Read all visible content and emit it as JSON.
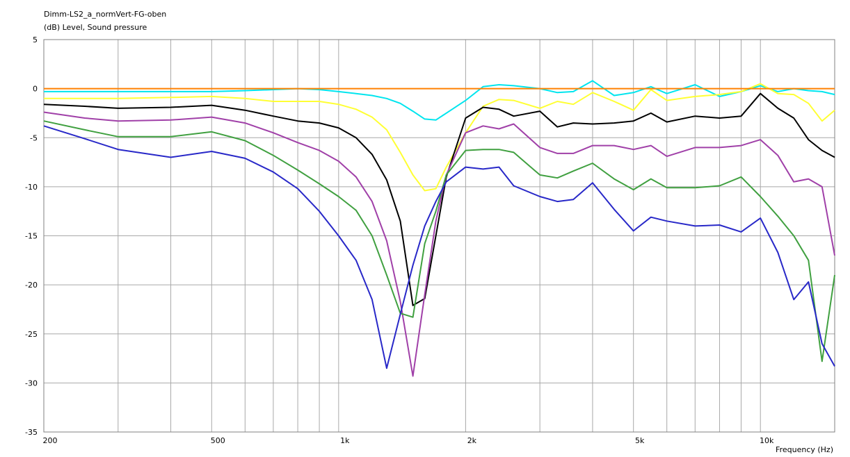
{
  "chart_data": {
    "type": "line",
    "title": "Dimm-LS2_a_normVert-FG-oben",
    "y_label": "(dB)  Level, Sound pressure",
    "x_label": "Frequency  (Hz)",
    "log_x": true,
    "grid": true,
    "xlim": [
      200,
      15000
    ],
    "ylim": [
      -35,
      5
    ],
    "xticks": [
      200,
      500,
      {
        "value": 1000,
        "label": "1k"
      },
      {
        "value": 2000,
        "label": "2k"
      },
      {
        "value": 5000,
        "label": "5k"
      },
      {
        "value": 10000,
        "label": "10k"
      }
    ],
    "xminorticks": [
      300,
      400,
      600,
      700,
      800,
      900,
      3000,
      4000,
      6000,
      7000,
      8000,
      9000
    ],
    "yticks": [
      5,
      0,
      -5,
      -10,
      -15,
      -20,
      -25,
      -30,
      -35
    ],
    "x": [
      200,
      250,
      300,
      400,
      500,
      600,
      700,
      800,
      900,
      1000,
      1100,
      1200,
      1300,
      1400,
      1500,
      1600,
      1700,
      1800,
      2000,
      2200,
      2400,
      2600,
      3000,
      3300,
      3600,
      4000,
      4500,
      5000,
      5500,
      6000,
      7000,
      8000,
      9000,
      10000,
      11000,
      12000,
      13000,
      14000,
      15000
    ],
    "series": [
      {
        "color": "#00e5ee",
        "values": [
          -0.3,
          -0.3,
          -0.3,
          -0.3,
          -0.3,
          -0.2,
          -0.1,
          0,
          -0.1,
          -0.3,
          -0.5,
          -0.7,
          -1.0,
          -1.5,
          -2.3,
          -3.1,
          -3.2,
          -2.5,
          -1.2,
          0.2,
          0.4,
          0.3,
          0,
          -0.4,
          -0.3,
          0.8,
          -0.7,
          -0.4,
          0.2,
          -0.5,
          0.4,
          -0.8,
          -0.3,
          0.3,
          -0.3,
          0,
          -0.2,
          -0.3,
          -0.6
        ]
      },
      {
        "color": "#ffff33",
        "values": [
          -1.0,
          -1.0,
          -1.0,
          -0.9,
          -0.8,
          -1.0,
          -1.3,
          -1.3,
          -1.3,
          -1.6,
          -2.1,
          -2.9,
          -4.2,
          -6.5,
          -8.8,
          -10.4,
          -10.2,
          -8.0,
          -4.5,
          -1.8,
          -1.1,
          -1.2,
          -2.0,
          -1.3,
          -1.6,
          -0.4,
          -1.3,
          -2.2,
          -0.1,
          -1.2,
          -0.8,
          -0.6,
          -0.3,
          0.5,
          -0.5,
          -0.6,
          -1.5,
          -3.3,
          -2.2
        ]
      },
      {
        "color": "#000000",
        "values": [
          -1.6,
          -1.8,
          -2.0,
          -1.9,
          -1.7,
          -2.2,
          -2.8,
          -3.3,
          -3.5,
          -4.0,
          -5.0,
          -6.7,
          -9.3,
          -13.5,
          -22.1,
          -21.4,
          -15.0,
          -9.0,
          -3.0,
          -1.9,
          -2.1,
          -2.8,
          -2.3,
          -3.9,
          -3.5,
          -3.6,
          -3.5,
          -3.3,
          -2.5,
          -3.4,
          -2.8,
          -3.0,
          -2.8,
          -0.5,
          -2.0,
          -3.0,
          -5.2,
          -6.3,
          -7.0
        ]
      },
      {
        "color": "#a040a8",
        "values": [
          -2.4,
          -3.0,
          -3.3,
          -3.2,
          -2.9,
          -3.5,
          -4.5,
          -5.5,
          -6.3,
          -7.4,
          -9.0,
          -11.5,
          -15.5,
          -21.7,
          -29.3,
          -21.0,
          -13.5,
          -8.8,
          -4.5,
          -3.8,
          -4.1,
          -3.6,
          -6.0,
          -6.6,
          -6.6,
          -5.8,
          -5.8,
          -6.2,
          -5.8,
          -6.9,
          -6.0,
          -6.0,
          -5.8,
          -5.2,
          -6.8,
          -9.5,
          -9.2,
          -10.0,
          -17.0
        ]
      },
      {
        "color": "#40a040",
        "values": [
          -3.3,
          -4.2,
          -4.9,
          -4.9,
          -4.4,
          -5.3,
          -6.8,
          -8.3,
          -9.7,
          -11.0,
          -12.4,
          -15.0,
          -19.0,
          -22.9,
          -23.3,
          -15.8,
          -12.5,
          -8.8,
          -6.3,
          -6.2,
          -6.2,
          -6.5,
          -8.8,
          -9.1,
          -8.4,
          -7.6,
          -9.2,
          -10.3,
          -9.2,
          -10.1,
          -10.1,
          -9.9,
          -9.0,
          -11.0,
          -13.0,
          -15.0,
          -17.5,
          -27.8,
          -19.0
        ]
      },
      {
        "color": "#2828c8",
        "values": [
          -3.8,
          -5.1,
          -6.2,
          -7.0,
          -6.4,
          -7.1,
          -8.5,
          -10.2,
          -12.5,
          -15.0,
          -17.5,
          -21.5,
          -28.5,
          -23.0,
          -18.0,
          -14.0,
          -11.5,
          -9.5,
          -8.0,
          -8.2,
          -8.0,
          -9.9,
          -11.0,
          -11.5,
          -11.3,
          -9.6,
          -12.3,
          -14.5,
          -13.1,
          -13.5,
          -14.0,
          -13.9,
          -14.6,
          -13.2,
          -16.7,
          -21.5,
          -19.7,
          -26.0,
          -28.3
        ]
      },
      {
        "color": "#ff8000",
        "values": [
          0,
          0,
          0,
          0,
          0,
          0,
          0,
          0,
          0,
          0,
          0,
          0,
          0,
          0,
          0,
          0,
          0,
          0,
          0,
          0,
          0,
          0,
          0,
          0,
          0,
          0,
          0,
          0,
          0,
          0,
          0,
          0,
          0,
          0,
          0,
          0,
          0,
          0,
          0
        ]
      }
    ]
  }
}
